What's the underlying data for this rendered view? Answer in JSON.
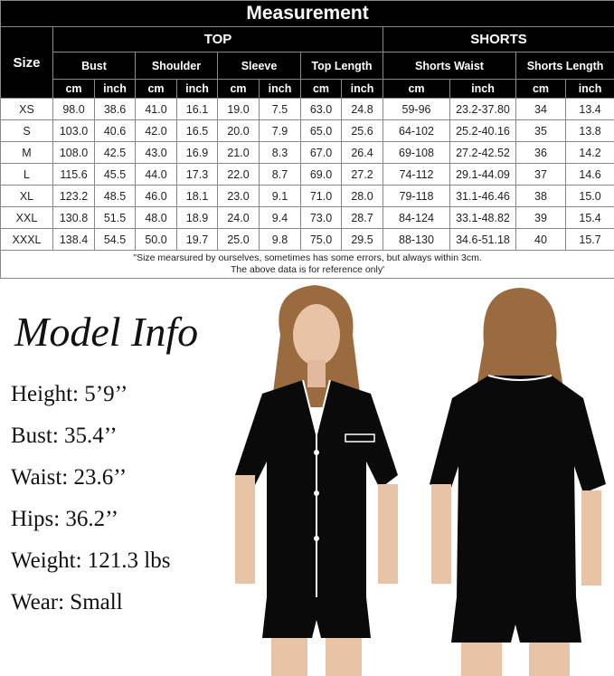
{
  "table": {
    "title": "Measurement",
    "size_label": "Size",
    "groups": {
      "top": "TOP",
      "shorts": "SHORTS"
    },
    "columns": [
      "Bust",
      "Shoulder",
      "Sleeve",
      "Top Length",
      "Shorts Waist",
      "Shorts Length"
    ],
    "units": [
      "cm",
      "inch"
    ],
    "rows": [
      [
        "XS",
        "98.0",
        "38.6",
        "41.0",
        "16.1",
        "19.0",
        "7.5",
        "63.0",
        "24.8",
        "59-96",
        "23.2-37.80",
        "34",
        "13.4"
      ],
      [
        "S",
        "103.0",
        "40.6",
        "42.0",
        "16.5",
        "20.0",
        "7.9",
        "65.0",
        "25.6",
        "64-102",
        "25.2-40.16",
        "35",
        "13.8"
      ],
      [
        "M",
        "108.0",
        "42.5",
        "43.0",
        "16.9",
        "21.0",
        "8.3",
        "67.0",
        "26.4",
        "69-108",
        "27.2-42.52",
        "36",
        "14.2"
      ],
      [
        "L",
        "115.6",
        "45.5",
        "44.0",
        "17.3",
        "22.0",
        "8.7",
        "69.0",
        "27.2",
        "74-112",
        "29.1-44.09",
        "37",
        "14.6"
      ],
      [
        "XL",
        "123.2",
        "48.5",
        "46.0",
        "18.1",
        "23.0",
        "9.1",
        "71.0",
        "28.0",
        "79-118",
        "31.1-46.46",
        "38",
        "15.0"
      ],
      [
        "XXL",
        "130.8",
        "51.5",
        "48.0",
        "18.9",
        "24.0",
        "9.4",
        "73.0",
        "28.7",
        "84-124",
        "33.1-48.82",
        "39",
        "15.4"
      ],
      [
        "XXXL",
        "138.4",
        "54.5",
        "50.0",
        "19.7",
        "25.0",
        "9.8",
        "75.0",
        "29.5",
        "88-130",
        "34.6-51.18",
        "40",
        "15.7"
      ]
    ],
    "note_line1": "\"Size mearsured by ourselves, sometimes has some errors, but always within 3cm.",
    "note_line2": "The above data is for reference only'"
  },
  "model_info": {
    "title": "Model Info",
    "lines": [
      "Height: 5’9’’",
      "Bust: 35.4’’",
      "Waist: 23.6’’",
      "Hips: 36.2’’",
      "Weight: 121.3 lbs",
      "Wear: Small"
    ]
  },
  "colors": {
    "header_bg": "#000000",
    "garment": "#0a0a0a",
    "piping": "#ffffff"
  }
}
